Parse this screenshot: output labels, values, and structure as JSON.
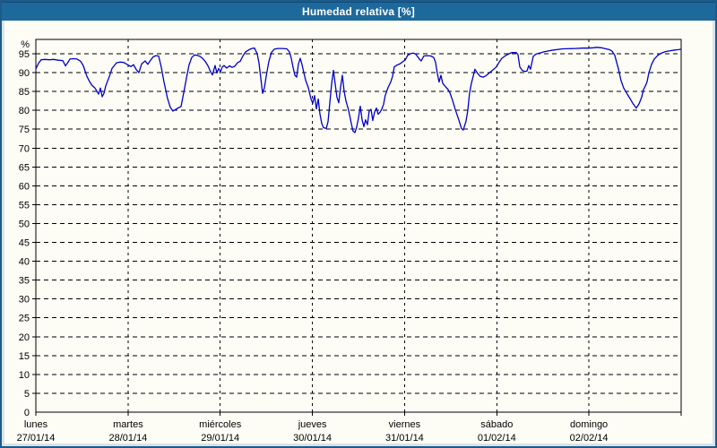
{
  "window": {
    "title": "Humedad relativa [%]"
  },
  "colors": {
    "titlebar_bg": "#1e699c",
    "window_border": "#1c5a8a",
    "panel_bg": "#fdfdf6",
    "grid": "#000000",
    "line": "#0000c8"
  },
  "chart_data": {
    "type": "line",
    "title": "Humedad relativa [%]",
    "ylabel": "%",
    "grid": "dashed",
    "legend": "none",
    "y_axis": {
      "min": 0,
      "max": 95,
      "step": 5,
      "unit": "%",
      "top_value": 98.8
    },
    "x_axis": {
      "unit": "days",
      "days": [
        {
          "name": "lunes",
          "date": "27/01/14"
        },
        {
          "name": "martes",
          "date": "28/01/14"
        },
        {
          "name": "miércoles",
          "date": "29/01/14"
        },
        {
          "name": "jueves",
          "date": "30/01/14"
        },
        {
          "name": "viernes",
          "date": "31/01/14"
        },
        {
          "name": "sábado",
          "date": "01/02/14"
        },
        {
          "name": "domingo",
          "date": "02/02/14"
        }
      ]
    },
    "series": [
      {
        "name": "Humedad relativa",
        "color": "#0000c8",
        "x_unit": "days_from_start",
        "points": [
          [
            0.0,
            91.0
          ],
          [
            0.029,
            92.5
          ],
          [
            0.058,
            93.4
          ],
          [
            0.097,
            93.5
          ],
          [
            0.146,
            93.4
          ],
          [
            0.194,
            93.5
          ],
          [
            0.243,
            93.3
          ],
          [
            0.292,
            93.2
          ],
          [
            0.321,
            91.8
          ],
          [
            0.35,
            92.8
          ],
          [
            0.369,
            93.6
          ],
          [
            0.408,
            93.7
          ],
          [
            0.447,
            93.6
          ],
          [
            0.486,
            93.0
          ],
          [
            0.515,
            91.8
          ],
          [
            0.554,
            89.0
          ],
          [
            0.583,
            87.6
          ],
          [
            0.613,
            86.5
          ],
          [
            0.642,
            85.9
          ],
          [
            0.681,
            84.3
          ],
          [
            0.7,
            85.9
          ],
          [
            0.719,
            83.6
          ],
          [
            0.739,
            84.5
          ],
          [
            0.758,
            86.5
          ],
          [
            0.797,
            89.0
          ],
          [
            0.826,
            91.1
          ],
          [
            0.856,
            92.0
          ],
          [
            0.875,
            92.6
          ],
          [
            0.914,
            92.8
          ],
          [
            0.953,
            92.7
          ],
          [
            0.982,
            92.3
          ],
          [
            1.001,
            92.0
          ],
          [
            1.031,
            91.6
          ],
          [
            1.06,
            92.1
          ],
          [
            1.089,
            90.8
          ],
          [
            1.118,
            90.0
          ],
          [
            1.147,
            92.3
          ],
          [
            1.186,
            93.1
          ],
          [
            1.215,
            92.2
          ],
          [
            1.244,
            93.3
          ],
          [
            1.274,
            94.2
          ],
          [
            1.303,
            94.5
          ],
          [
            1.332,
            94.4
          ],
          [
            1.361,
            91.4
          ],
          [
            1.39,
            87.5
          ],
          [
            1.429,
            83.1
          ],
          [
            1.458,
            80.8
          ],
          [
            1.487,
            79.8
          ],
          [
            1.526,
            80.4
          ],
          [
            1.556,
            80.8
          ],
          [
            1.575,
            81.0
          ],
          [
            1.604,
            84.7
          ],
          [
            1.633,
            88.5
          ],
          [
            1.662,
            92.0
          ],
          [
            1.691,
            94.0
          ],
          [
            1.721,
            94.7
          ],
          [
            1.75,
            94.6
          ],
          [
            1.779,
            94.3
          ],
          [
            1.808,
            93.8
          ],
          [
            1.837,
            93.0
          ],
          [
            1.866,
            91.9
          ],
          [
            1.896,
            90.2
          ],
          [
            1.915,
            89.4
          ],
          [
            1.944,
            91.9
          ],
          [
            1.964,
            89.9
          ],
          [
            1.983,
            91.1
          ],
          [
            2.003,
            90.2
          ],
          [
            2.022,
            91.5
          ],
          [
            2.042,
            91.9
          ],
          [
            2.071,
            91.2
          ],
          [
            2.1,
            91.8
          ],
          [
            2.129,
            91.4
          ],
          [
            2.158,
            91.7
          ],
          [
            2.187,
            92.6
          ],
          [
            2.217,
            93.0
          ],
          [
            2.246,
            94.4
          ],
          [
            2.275,
            95.5
          ],
          [
            2.314,
            96.1
          ],
          [
            2.343,
            96.4
          ],
          [
            2.372,
            96.5
          ],
          [
            2.401,
            95.0
          ],
          [
            2.421,
            92.5
          ],
          [
            2.44,
            88.5
          ],
          [
            2.46,
            84.5
          ],
          [
            2.479,
            86.0
          ],
          [
            2.499,
            89.0
          ],
          [
            2.528,
            93.0
          ],
          [
            2.557,
            95.4
          ],
          [
            2.586,
            96.2
          ],
          [
            2.625,
            96.4
          ],
          [
            2.674,
            96.4
          ],
          [
            2.722,
            96.3
          ],
          [
            2.751,
            95.5
          ],
          [
            2.771,
            93.8
          ],
          [
            2.79,
            91.4
          ],
          [
            2.81,
            89.3
          ],
          [
            2.829,
            88.8
          ],
          [
            2.849,
            92.3
          ],
          [
            2.868,
            93.8
          ],
          [
            2.888,
            92.0
          ],
          [
            2.907,
            90.0
          ],
          [
            2.926,
            88.0
          ],
          [
            2.956,
            86.0
          ],
          [
            2.985,
            83.0
          ],
          [
            3.004,
            81.9
          ],
          [
            3.024,
            83.9
          ],
          [
            3.043,
            80.4
          ],
          [
            3.063,
            83.0
          ],
          [
            3.082,
            79.0
          ],
          [
            3.101,
            76.5
          ],
          [
            3.121,
            75.4
          ],
          [
            3.15,
            75.2
          ],
          [
            3.169,
            77.0
          ],
          [
            3.189,
            82.0
          ],
          [
            3.208,
            87.0
          ],
          [
            3.228,
            90.6
          ],
          [
            3.247,
            87.0
          ],
          [
            3.266,
            83.5
          ],
          [
            3.286,
            82.0
          ],
          [
            3.305,
            86.0
          ],
          [
            3.325,
            89.3
          ],
          [
            3.344,
            85.0
          ],
          [
            3.364,
            82.5
          ],
          [
            3.393,
            80.0
          ],
          [
            3.422,
            76.5
          ],
          [
            3.441,
            74.5
          ],
          [
            3.461,
            74.1
          ],
          [
            3.48,
            75.5
          ],
          [
            3.5,
            78.0
          ],
          [
            3.519,
            81.1
          ],
          [
            3.539,
            77.5
          ],
          [
            3.558,
            75.7
          ],
          [
            3.577,
            77.5
          ],
          [
            3.597,
            76.2
          ],
          [
            3.616,
            79.8
          ],
          [
            3.636,
            80.3
          ],
          [
            3.655,
            77.3
          ],
          [
            3.674,
            79.5
          ],
          [
            3.694,
            80.6
          ],
          [
            3.713,
            79.0
          ],
          [
            3.733,
            79.5
          ],
          [
            3.752,
            80.3
          ],
          [
            3.771,
            81.5
          ],
          [
            3.791,
            84.0
          ],
          [
            3.82,
            86.0
          ],
          [
            3.849,
            87.5
          ],
          [
            3.869,
            89.0
          ],
          [
            3.888,
            91.5
          ],
          [
            3.917,
            92.0
          ],
          [
            3.946,
            92.3
          ],
          [
            3.966,
            92.6
          ],
          [
            3.985,
            93.0
          ],
          [
            4.005,
            93.3
          ],
          [
            4.034,
            94.6
          ],
          [
            4.063,
            95.0
          ],
          [
            4.092,
            95.2
          ],
          [
            4.121,
            94.9
          ],
          [
            4.16,
            93.6
          ],
          [
            4.18,
            93.1
          ],
          [
            4.209,
            94.4
          ],
          [
            4.248,
            94.5
          ],
          [
            4.287,
            94.4
          ],
          [
            4.316,
            94.0
          ],
          [
            4.335,
            92.8
          ],
          [
            4.355,
            89.9
          ],
          [
            4.374,
            87.5
          ],
          [
            4.394,
            89.3
          ],
          [
            4.413,
            87.2
          ],
          [
            4.442,
            86.3
          ],
          [
            4.472,
            85.5
          ],
          [
            4.491,
            84.7
          ],
          [
            4.52,
            82.7
          ],
          [
            4.549,
            80.3
          ],
          [
            4.588,
            77.5
          ],
          [
            4.617,
            75.2
          ],
          [
            4.637,
            74.8
          ],
          [
            4.666,
            77.1
          ],
          [
            4.685,
            79.9
          ],
          [
            4.705,
            84.5
          ],
          [
            4.724,
            87.1
          ],
          [
            4.743,
            89.0
          ],
          [
            4.763,
            90.9
          ],
          [
            4.792,
            89.8
          ],
          [
            4.821,
            89.0
          ],
          [
            4.85,
            88.8
          ],
          [
            4.88,
            89.1
          ],
          [
            4.909,
            89.7
          ],
          [
            4.938,
            90.3
          ],
          [
            4.967,
            90.9
          ],
          [
            4.997,
            91.6
          ],
          [
            5.026,
            92.8
          ],
          [
            5.055,
            93.8
          ],
          [
            5.094,
            94.5
          ],
          [
            5.133,
            95.0
          ],
          [
            5.162,
            95.3
          ],
          [
            5.211,
            95.3
          ],
          [
            5.23,
            94.8
          ],
          [
            5.25,
            91.5
          ],
          [
            5.279,
            90.5
          ],
          [
            5.308,
            90.3
          ],
          [
            5.327,
            90.4
          ],
          [
            5.347,
            91.9
          ],
          [
            5.366,
            90.9
          ],
          [
            5.396,
            94.3
          ],
          [
            5.425,
            94.9
          ],
          [
            5.464,
            95.2
          ],
          [
            5.512,
            95.5
          ],
          [
            5.59,
            95.9
          ],
          [
            5.716,
            96.3
          ],
          [
            5.852,
            96.4
          ],
          [
            5.93,
            96.5
          ],
          [
            5.998,
            96.5
          ],
          [
            6.047,
            96.6
          ],
          [
            6.086,
            96.7
          ],
          [
            6.134,
            96.6
          ],
          [
            6.183,
            96.3
          ],
          [
            6.222,
            96.1
          ],
          [
            6.251,
            95.7
          ],
          [
            6.28,
            94.6
          ],
          [
            6.319,
            91.0
          ],
          [
            6.348,
            87.9
          ],
          [
            6.377,
            85.9
          ],
          [
            6.416,
            84.3
          ],
          [
            6.446,
            83.1
          ],
          [
            6.475,
            81.9
          ],
          [
            6.513,
            80.6
          ],
          [
            6.543,
            81.7
          ],
          [
            6.572,
            83.5
          ],
          [
            6.591,
            85.5
          ],
          [
            6.601,
            85.9
          ],
          [
            6.63,
            87.5
          ],
          [
            6.65,
            90.0
          ],
          [
            6.679,
            92.2
          ],
          [
            6.708,
            93.6
          ],
          [
            6.747,
            94.6
          ],
          [
            6.786,
            95.2
          ],
          [
            6.834,
            95.6
          ],
          [
            6.883,
            95.8
          ],
          [
            6.932,
            96.0
          ],
          [
            6.971,
            96.1
          ],
          [
            7.0,
            96.2
          ]
        ]
      }
    ]
  }
}
